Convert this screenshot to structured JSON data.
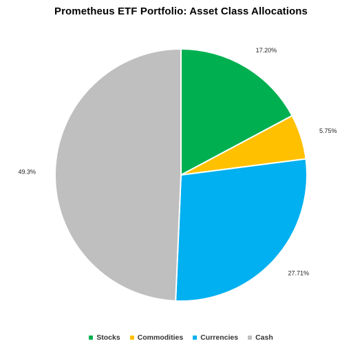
{
  "chart_data": {
    "type": "pie",
    "title": "Prometheus ETF Portfolio: Asset Class Allocations",
    "categories": [
      "Stocks",
      "Commodities",
      "Currencies",
      "Cash"
    ],
    "values": [
      17.2,
      5.75,
      27.71,
      49.3
    ],
    "data_labels": [
      "17.20%",
      "5.75%",
      "27.71%",
      "49.3%"
    ],
    "colors": [
      "#00B050",
      "#FFC000",
      "#00B0F0",
      "#BFBFBF"
    ],
    "start_angle_deg": 0,
    "direction": "clockwise",
    "legend_position": "bottom"
  }
}
